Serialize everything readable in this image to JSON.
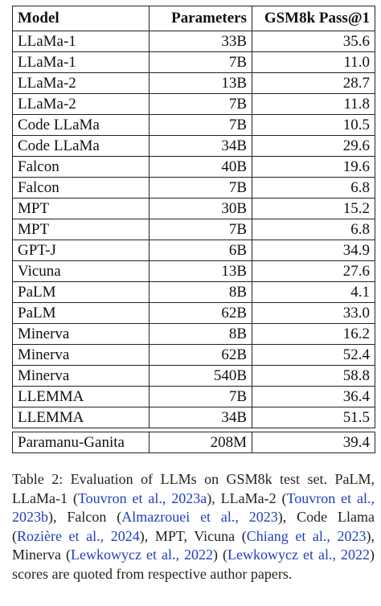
{
  "table": {
    "headers": [
      "Model",
      "Parameters",
      "GSM8k Pass@1"
    ],
    "rows": [
      [
        "LLaMa-1",
        "33B",
        "35.6"
      ],
      [
        "LLaMa-1",
        "7B",
        "11.0"
      ],
      [
        "LLaMa-2",
        "13B",
        "28.7"
      ],
      [
        "LLaMa-2",
        "7B",
        "11.8"
      ],
      [
        "Code LLaMa",
        "7B",
        "10.5"
      ],
      [
        "Code LLaMa",
        "34B",
        "29.6"
      ],
      [
        "Falcon",
        "40B",
        "19.6"
      ],
      [
        "Falcon",
        "7B",
        "6.8"
      ],
      [
        "MPT",
        "30B",
        "15.2"
      ],
      [
        "MPT",
        "7B",
        "6.8"
      ],
      [
        "GPT-J",
        "6B",
        "34.9"
      ],
      [
        "Vicuna",
        "13B",
        "27.6"
      ],
      [
        "PaLM",
        "8B",
        "4.1"
      ],
      [
        "PaLM",
        "62B",
        "33.0"
      ],
      [
        "Minerva",
        "8B",
        "16.2"
      ],
      [
        "Minerva",
        "62B",
        "52.4"
      ],
      [
        "Minerva",
        "540B",
        "58.8"
      ],
      [
        "LLEMMA",
        "7B",
        "36.4"
      ],
      [
        "LLEMMA",
        "34B",
        "51.5"
      ]
    ],
    "final_row": [
      "Paramanu-Ganita",
      "208M",
      "39.4"
    ]
  },
  "caption": {
    "segments": [
      {
        "text": "Table 2: Evaluation of LLMs on GSM8k test set. PaLM, LLaMa-1 (",
        "cite": false
      },
      {
        "text": "Touvron et al., 2023a",
        "cite": true
      },
      {
        "text": "), LLaMa-2 (",
        "cite": false
      },
      {
        "text": "Touvron et al., 2023b",
        "cite": true
      },
      {
        "text": "), Falcon (",
        "cite": false
      },
      {
        "text": "Almazrouei et al., 2023",
        "cite": true
      },
      {
        "text": "), Code Llama (",
        "cite": false
      },
      {
        "text": "Rozière et al., 2024",
        "cite": true
      },
      {
        "text": "), MPT, Vicuna (",
        "cite": false
      },
      {
        "text": "Chiang et al., 2023",
        "cite": true
      },
      {
        "text": "), Minerva (",
        "cite": false
      },
      {
        "text": "Lewkowycz et al., 2022",
        "cite": true
      },
      {
        "text": ") (",
        "cite": false
      },
      {
        "text": "Lewkowycz et al., 2022",
        "cite": true
      },
      {
        "text": ") scores are quoted from respective author papers.",
        "cite": false
      }
    ]
  },
  "colors": {
    "citation": "#1f3fbf",
    "text": "#111111"
  }
}
